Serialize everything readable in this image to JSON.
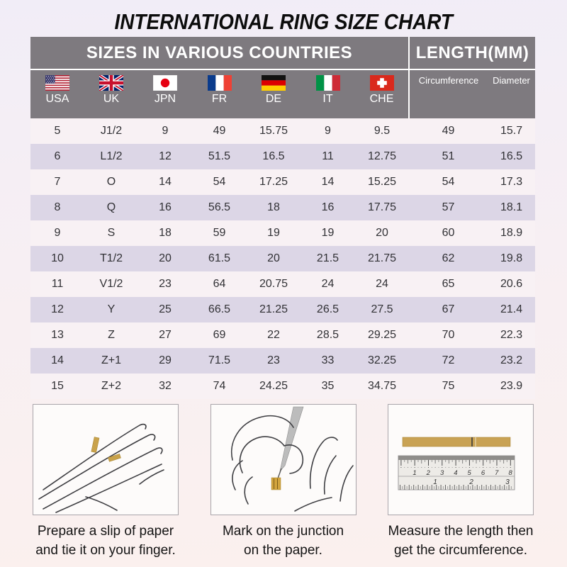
{
  "page_title": "INTERNATIONAL RING SIZE CHART",
  "table_header": {
    "countries_group_label": "SIZES IN VARIOUS COUNTRIES",
    "length_group_label": "LENGTH(MM)",
    "country_columns": [
      {
        "label": "USA",
        "icon": "usa-flag-icon"
      },
      {
        "label": "UK",
        "icon": "uk-flag-icon"
      },
      {
        "label": "JPN",
        "icon": "japan-flag-icon"
      },
      {
        "label": "FR",
        "icon": "france-flag-icon"
      },
      {
        "label": "DE",
        "icon": "germany-flag-icon"
      },
      {
        "label": "IT",
        "icon": "italy-flag-icon"
      },
      {
        "label": "CHE",
        "icon": "switzerland-flag-icon"
      }
    ],
    "length_columns": [
      {
        "label": "Circumference"
      },
      {
        "label": "Diameter"
      }
    ]
  },
  "chart_data": {
    "type": "table",
    "title": "INTERNATIONAL RING SIZE CHART",
    "column_groups": [
      {
        "label": "SIZES IN VARIOUS COUNTRIES",
        "span": 7
      },
      {
        "label": "LENGTH(MM)",
        "span": 2
      }
    ],
    "columns": [
      "USA",
      "UK",
      "JPN",
      "FR",
      "DE",
      "IT",
      "CHE",
      "Circumference",
      "Diameter"
    ],
    "rows": [
      [
        "5",
        "J1/2",
        "9",
        "49",
        "15.75",
        "9",
        "9.5",
        "49",
        "15.7"
      ],
      [
        "6",
        "L1/2",
        "12",
        "51.5",
        "16.5",
        "11",
        "12.75",
        "51",
        "16.5"
      ],
      [
        "7",
        "O",
        "14",
        "54",
        "17.25",
        "14",
        "15.25",
        "54",
        "17.3"
      ],
      [
        "8",
        "Q",
        "16",
        "56.5",
        "18",
        "16",
        "17.75",
        "57",
        "18.1"
      ],
      [
        "9",
        "S",
        "18",
        "59",
        "19",
        "19",
        "20",
        "60",
        "18.9"
      ],
      [
        "10",
        "T1/2",
        "20",
        "61.5",
        "20",
        "21.5",
        "21.75",
        "62",
        "19.8"
      ],
      [
        "11",
        "V1/2",
        "23",
        "64",
        "20.75",
        "24",
        "24",
        "65",
        "20.6"
      ],
      [
        "12",
        "Y",
        "25",
        "66.5",
        "21.25",
        "26.5",
        "27.5",
        "67",
        "21.4"
      ],
      [
        "13",
        "Z",
        "27",
        "69",
        "22",
        "28.5",
        "29.25",
        "70",
        "22.3"
      ],
      [
        "14",
        "Z+1",
        "29",
        "71.5",
        "23",
        "33",
        "32.25",
        "72",
        "23.2"
      ],
      [
        "15",
        "Z+2",
        "32",
        "74",
        "24.25",
        "35",
        "34.75",
        "75",
        "23.9"
      ]
    ]
  },
  "instructions": [
    {
      "illustration": "hand-with-paper-strip",
      "line1": "Prepare a slip of paper",
      "line2": "and tie it on your finger."
    },
    {
      "illustration": "pen-marking-junction",
      "line1": "Mark on the junction",
      "line2": "on the paper."
    },
    {
      "illustration": "ruler-measuring-strip",
      "line1": "Measure the length then",
      "line2": "get the circumference.",
      "ruler_cm_numbers": [
        "1",
        "2",
        "3",
        "4",
        "5",
        "6",
        "7",
        "8"
      ],
      "ruler_inch_numbers": [
        "1",
        "2",
        "3"
      ]
    }
  ],
  "colors": {
    "header_gray": "#7e7a7f",
    "row_stripe_lavender": "#dcd6e6",
    "row_stripe_pink": "#f8f1f4",
    "paper_strip_gold": "#c9a24a",
    "page_bg_top": "#f1edf7",
    "page_bg_bottom": "#fbf0ee"
  }
}
